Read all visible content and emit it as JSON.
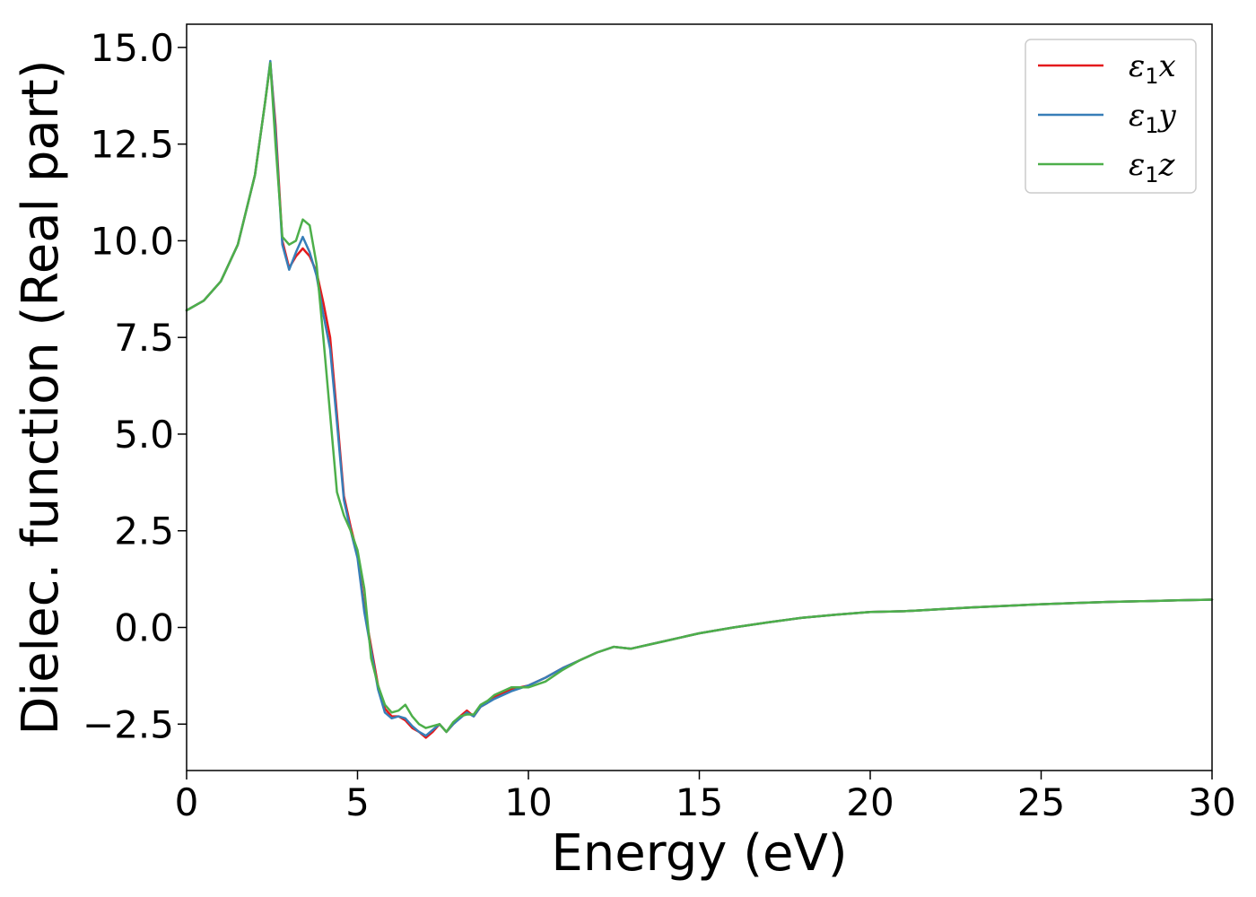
{
  "chart_data": {
    "type": "line",
    "title": "",
    "xlabel": "Energy (eV)",
    "ylabel": "Dielec. function (Real part)",
    "xlim": [
      0,
      30
    ],
    "ylim": [
      -3.7,
      15.6
    ],
    "xticks": [
      0,
      5,
      10,
      15,
      20,
      25,
      30
    ],
    "xtick_labels": [
      "0",
      "5",
      "10",
      "15",
      "20",
      "25",
      "30"
    ],
    "yticks": [
      -2.5,
      0.0,
      2.5,
      5.0,
      7.5,
      10.0,
      12.5,
      15.0
    ],
    "ytick_labels": [
      "−2.5",
      "0.0",
      "2.5",
      "5.0",
      "7.5",
      "10.0",
      "12.5",
      "15.0"
    ],
    "grid": false,
    "legend_position": "top-right",
    "series": [
      {
        "name": "ε1x",
        "legend_base": "ε",
        "legend_sub": "1",
        "legend_suffix": "x",
        "color": "#e41a1c",
        "x": [
          0,
          0.5,
          1.0,
          1.5,
          2.0,
          2.3,
          2.45,
          2.6,
          2.8,
          3.0,
          3.2,
          3.4,
          3.6,
          3.8,
          4.0,
          4.2,
          4.4,
          4.6,
          4.8,
          5.0,
          5.2,
          5.4,
          5.6,
          5.8,
          6.0,
          6.2,
          6.4,
          6.6,
          6.8,
          7.0,
          7.2,
          7.4,
          7.6,
          7.8,
          8.0,
          8.2,
          8.4,
          8.6,
          8.8,
          9.0,
          9.5,
          10.0,
          10.5,
          11.0,
          11.5,
          12.0,
          12.5,
          13.0,
          13.5,
          14.0,
          14.5,
          15.0,
          16.0,
          17.0,
          18.0,
          19.0,
          20.0,
          21.0,
          22.0,
          23.0,
          24.0,
          25.0,
          26.0,
          27.0,
          28.0,
          29.0,
          30.0
        ],
        "y": [
          8.2,
          8.45,
          8.95,
          9.9,
          11.7,
          13.6,
          14.6,
          13.0,
          10.0,
          9.3,
          9.6,
          9.8,
          9.6,
          9.2,
          8.4,
          7.5,
          5.5,
          3.4,
          2.6,
          1.9,
          0.5,
          -0.5,
          -1.5,
          -2.1,
          -2.3,
          -2.3,
          -2.4,
          -2.6,
          -2.7,
          -2.85,
          -2.7,
          -2.5,
          -2.7,
          -2.5,
          -2.3,
          -2.15,
          -2.3,
          -2.05,
          -1.95,
          -1.8,
          -1.6,
          -1.5,
          -1.3,
          -1.05,
          -0.85,
          -0.65,
          -0.5,
          -0.55,
          -0.45,
          -0.35,
          -0.25,
          -0.15,
          0.0,
          0.13,
          0.25,
          0.33,
          0.4,
          0.42,
          0.47,
          0.52,
          0.56,
          0.6,
          0.63,
          0.66,
          0.68,
          0.7,
          0.72
        ]
      },
      {
        "name": "ε1y",
        "legend_base": "ε",
        "legend_sub": "1",
        "legend_suffix": "y",
        "color": "#377eb8",
        "x": [
          0,
          0.5,
          1.0,
          1.5,
          2.0,
          2.3,
          2.45,
          2.6,
          2.8,
          3.0,
          3.2,
          3.4,
          3.6,
          3.8,
          4.0,
          4.2,
          4.4,
          4.6,
          4.8,
          5.0,
          5.2,
          5.4,
          5.6,
          5.8,
          6.0,
          6.2,
          6.4,
          6.6,
          6.8,
          7.0,
          7.2,
          7.4,
          7.6,
          7.8,
          8.0,
          8.2,
          8.4,
          8.6,
          8.8,
          9.0,
          9.5,
          10.0,
          10.5,
          11.0,
          11.5,
          12.0,
          12.5,
          13.0,
          13.5,
          14.0,
          14.5,
          15.0,
          16.0,
          17.0,
          18.0,
          19.0,
          20.0,
          21.0,
          22.0,
          23.0,
          24.0,
          25.0,
          26.0,
          27.0,
          28.0,
          29.0,
          30.0
        ],
        "y": [
          8.2,
          8.45,
          8.95,
          9.9,
          11.7,
          13.6,
          14.65,
          12.8,
          9.9,
          9.25,
          9.7,
          10.1,
          9.7,
          9.1,
          8.1,
          7.2,
          5.3,
          3.3,
          2.5,
          1.8,
          0.4,
          -0.6,
          -1.6,
          -2.2,
          -2.35,
          -2.3,
          -2.35,
          -2.55,
          -2.7,
          -2.8,
          -2.65,
          -2.5,
          -2.7,
          -2.5,
          -2.35,
          -2.2,
          -2.3,
          -2.05,
          -1.95,
          -1.85,
          -1.65,
          -1.5,
          -1.3,
          -1.05,
          -0.85,
          -0.65,
          -0.5,
          -0.55,
          -0.45,
          -0.35,
          -0.25,
          -0.15,
          0.0,
          0.13,
          0.25,
          0.33,
          0.4,
          0.42,
          0.47,
          0.52,
          0.56,
          0.6,
          0.63,
          0.66,
          0.68,
          0.7,
          0.72
        ]
      },
      {
        "name": "ε1z",
        "legend_base": "ε",
        "legend_sub": "1",
        "legend_suffix": "z",
        "color": "#4daf4a",
        "x": [
          0,
          0.5,
          1.0,
          1.5,
          2.0,
          2.3,
          2.45,
          2.6,
          2.8,
          3.0,
          3.2,
          3.4,
          3.6,
          3.8,
          4.0,
          4.2,
          4.4,
          4.6,
          4.8,
          5.0,
          5.2,
          5.4,
          5.6,
          5.8,
          6.0,
          6.2,
          6.4,
          6.6,
          6.8,
          7.0,
          7.2,
          7.4,
          7.6,
          7.8,
          8.0,
          8.2,
          8.4,
          8.6,
          8.8,
          9.0,
          9.5,
          10.0,
          10.5,
          11.0,
          11.5,
          12.0,
          12.5,
          13.0,
          13.5,
          14.0,
          14.5,
          15.0,
          16.0,
          17.0,
          18.0,
          19.0,
          20.0,
          21.0,
          22.0,
          23.0,
          24.0,
          25.0,
          26.0,
          27.0,
          28.0,
          29.0,
          30.0
        ],
        "y": [
          8.2,
          8.45,
          8.95,
          9.9,
          11.7,
          13.6,
          14.6,
          12.5,
          10.1,
          9.9,
          10.0,
          10.55,
          10.4,
          9.4,
          7.5,
          5.5,
          3.5,
          2.9,
          2.5,
          2.0,
          1.0,
          -0.8,
          -1.5,
          -2.0,
          -2.2,
          -2.15,
          -2.0,
          -2.3,
          -2.5,
          -2.6,
          -2.55,
          -2.5,
          -2.7,
          -2.45,
          -2.3,
          -2.25,
          -2.25,
          -2.0,
          -1.9,
          -1.75,
          -1.55,
          -1.55,
          -1.4,
          -1.1,
          -0.85,
          -0.65,
          -0.5,
          -0.55,
          -0.45,
          -0.35,
          -0.25,
          -0.15,
          0.0,
          0.13,
          0.25,
          0.33,
          0.4,
          0.42,
          0.47,
          0.52,
          0.56,
          0.6,
          0.63,
          0.66,
          0.68,
          0.7,
          0.72
        ]
      }
    ]
  }
}
